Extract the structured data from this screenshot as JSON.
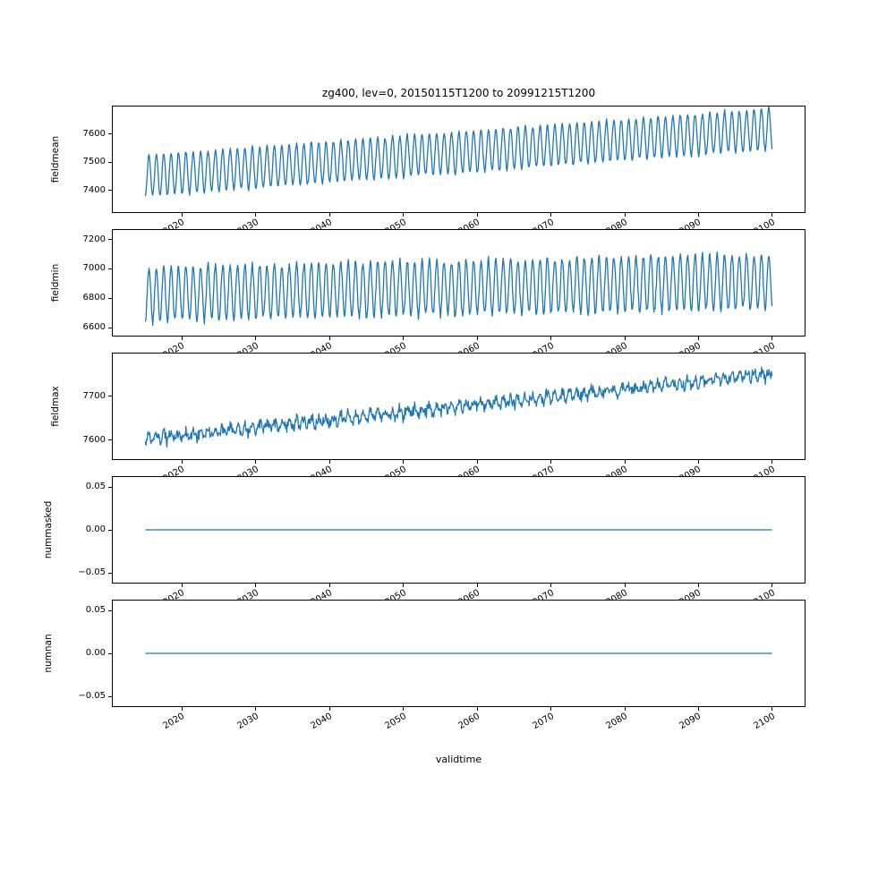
{
  "figure": {
    "title": "zg400, lev=0, 20150115T1200 to 20991215T1200",
    "xlabel": "validtime"
  },
  "colors": {
    "line": "#1f77b4",
    "axes": "#000000",
    "background": "#ffffff"
  },
  "chart_data": {
    "type": "line",
    "title": "zg400, lev=0, 20150115T1200 to 20991215T1200",
    "xlabel": "validtime",
    "legend": "none",
    "grid": false,
    "x_range": [
      2015.04,
      2099.96
    ],
    "x_lim": [
      2010.5,
      2104.5
    ],
    "n_points": 1020,
    "sampling": "monthly",
    "x_ticks": [
      2020,
      2030,
      2040,
      2050,
      2060,
      2070,
      2080,
      2090,
      2100
    ],
    "x_tick_labels": [
      "2020",
      "2030",
      "2040",
      "2050",
      "2060",
      "2070",
      "2080",
      "2090",
      "2100"
    ],
    "subplots": [
      {
        "name": "fieldmean",
        "ylabel": "fieldmean",
        "y_lim": [
          7320,
          7700
        ],
        "y_ticks": [
          7400,
          7500,
          7600
        ],
        "y_tick_labels": [
          "7400",
          "7500",
          "7600"
        ],
        "series": {
          "kind": "trend+seasonal+noise",
          "description": "annual oscillation rising from about 7350-7510 in 2015 to about 7530-7700 in 2099",
          "base_start": 7452,
          "base_end": 7618,
          "seasonal_amplitude": 73,
          "noise": 9,
          "seed": 11
        }
      },
      {
        "name": "fieldmin",
        "ylabel": "fieldmin",
        "y_lim": [
          6540,
          7270
        ],
        "y_ticks": [
          6600,
          6800,
          7000,
          7200
        ],
        "y_tick_labels": [
          "6600",
          "6800",
          "7000",
          "7200"
        ],
        "series": {
          "kind": "trend+seasonal+noise",
          "description": "annual oscillation between about 6600 and 7050 in 2015, between about 6650 and 7200 in 2099",
          "base_start": 6830,
          "base_end": 6915,
          "seasonal_amplitude": 185,
          "noise": 32,
          "seed": 22
        }
      },
      {
        "name": "fieldmax",
        "ylabel": "fieldmax",
        "y_lim": [
          7555,
          7800
        ],
        "y_ticks": [
          7600,
          7700
        ],
        "y_tick_labels": [
          "7600",
          "7700"
        ],
        "series": {
          "kind": "trend+seasonal+noise",
          "description": "noisy line rising from about 7600 in 2015 to about 7760 in 2099",
          "base_start": 7602,
          "base_end": 7752,
          "seasonal_amplitude": 9,
          "noise": 16,
          "seed": 33
        }
      },
      {
        "name": "nummasked",
        "ylabel": "nummasked",
        "y_lim": [
          -0.0625,
          0.0625
        ],
        "y_ticks": [
          -0.05,
          0,
          0.05
        ],
        "y_tick_labels": [
          "−0.05",
          "0.00",
          "0.05"
        ],
        "series": {
          "kind": "constant",
          "description": "constant zero over the whole period",
          "value": 0
        }
      },
      {
        "name": "numnan",
        "ylabel": "numnan",
        "y_lim": [
          -0.0625,
          0.0625
        ],
        "y_ticks": [
          -0.05,
          0,
          0.05
        ],
        "y_tick_labels": [
          "−0.05",
          "0.00",
          "0.05"
        ],
        "series": {
          "kind": "constant",
          "description": "constant zero over the whole period",
          "value": 0
        }
      }
    ]
  }
}
